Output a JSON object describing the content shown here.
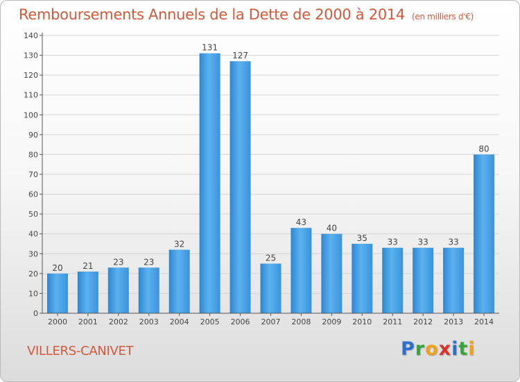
{
  "title": "Remboursements Annuels de la Dette de 2000 à 2014",
  "unit": "(en milliers d'€)",
  "commune": "VILLERS-CANIVET",
  "logo": {
    "text": "Proxiti",
    "letters": [
      {
        "char": "P",
        "color": "#2f6fc9"
      },
      {
        "char": "r",
        "color": "#39a43c"
      },
      {
        "char": "o",
        "color": "#f0a21a"
      },
      {
        "char": "x",
        "color": "#d9322b"
      },
      {
        "char": "i",
        "color": "#2f6fc9"
      },
      {
        "char": "t",
        "color": "#39a43c"
      },
      {
        "char": "i",
        "color": "#f0a21a"
      }
    ]
  },
  "chart_data": {
    "type": "bar",
    "categories": [
      "2000",
      "2001",
      "2002",
      "2003",
      "2004",
      "2005",
      "2006",
      "2007",
      "2008",
      "2009",
      "2010",
      "2011",
      "2012",
      "2013",
      "2014"
    ],
    "values": [
      20,
      21,
      23,
      23,
      32,
      131,
      127,
      25,
      43,
      40,
      35,
      33,
      33,
      33,
      80
    ],
    "ylim": [
      0,
      140
    ],
    "yticks": [
      0,
      10,
      20,
      30,
      40,
      50,
      60,
      70,
      80,
      90,
      100,
      110,
      120,
      130,
      140
    ],
    "grid": true,
    "bar_color": "#4a9fe0"
  }
}
